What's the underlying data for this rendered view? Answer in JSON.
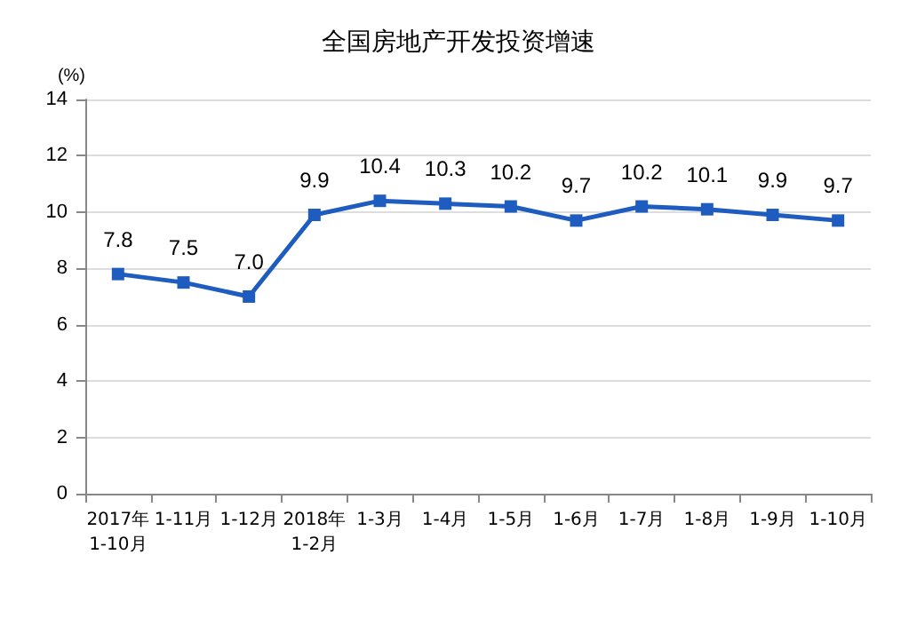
{
  "chart_data": {
    "type": "line",
    "title": "全国房地产开发投资增速",
    "ylabel": "(%)",
    "categories": [
      "2017年\n1-10月",
      "1-11月",
      "1-12月",
      "2018年\n1-2月",
      "1-3月",
      "1-4月",
      "1-5月",
      "1-6月",
      "1-7月",
      "1-8月",
      "1-9月",
      "1-10月"
    ],
    "series": [
      {
        "color": "#1f5cc0",
        "values": [
          7.8,
          7.5,
          7.0,
          9.9,
          10.4,
          10.3,
          10.2,
          9.7,
          10.2,
          10.1,
          9.9,
          9.7
        ]
      }
    ],
    "value_labels": [
      "7.8",
      "7.5",
      "7.0",
      "9.9",
      "10.4",
      "10.3",
      "10.2",
      "9.7",
      "10.2",
      "10.1",
      "9.9",
      "9.7"
    ],
    "ylim": [
      0,
      14
    ],
    "yticks": [
      0,
      2,
      4,
      6,
      8,
      10,
      12,
      14
    ],
    "grid": "y",
    "marker": "square",
    "line_style": "solid"
  }
}
